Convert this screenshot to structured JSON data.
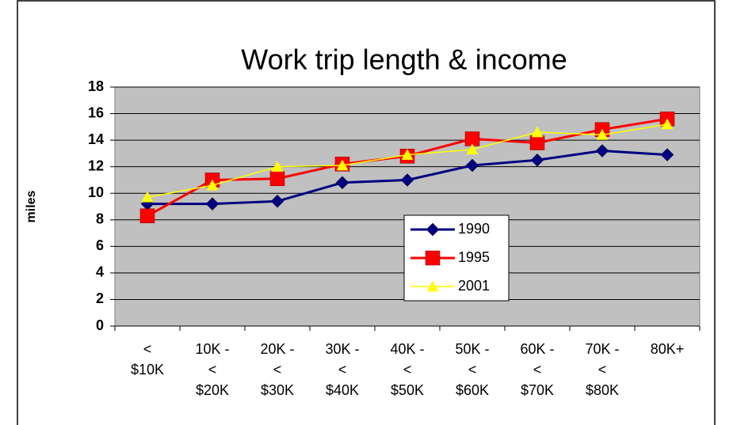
{
  "chart_data": {
    "type": "line",
    "title": "Work trip length & income",
    "y_label": "miles",
    "categories": [
      "<\n$10K",
      "10K -\n<\n$20K",
      "20K -\n<\n$30K",
      "30K -\n<\n$40K",
      "40K -\n<\n$50K",
      "50K -\n<\n$60K",
      "60K -\n<\n$70K",
      "70K -\n<\n$80K",
      "80K+"
    ],
    "series": [
      {
        "name": "1990",
        "color": "#000080",
        "marker": "diamond",
        "values": [
          9.2,
          9.2,
          9.4,
          10.8,
          11.0,
          12.1,
          12.5,
          13.2,
          12.9
        ]
      },
      {
        "name": "1995",
        "color": "#ff0000",
        "marker": "square",
        "values": [
          8.3,
          11.0,
          11.1,
          12.2,
          12.8,
          14.1,
          13.8,
          14.8,
          15.6
        ]
      },
      {
        "name": "2001",
        "color": "#ffff00",
        "marker": "triangle",
        "values": [
          9.7,
          10.6,
          12.0,
          12.1,
          12.9,
          13.3,
          14.6,
          14.4,
          15.2
        ]
      }
    ],
    "ylim": [
      0,
      18
    ],
    "yticks": [
      0,
      2,
      4,
      6,
      8,
      10,
      12,
      14,
      16,
      18
    ],
    "grid": true,
    "legend": "center"
  }
}
